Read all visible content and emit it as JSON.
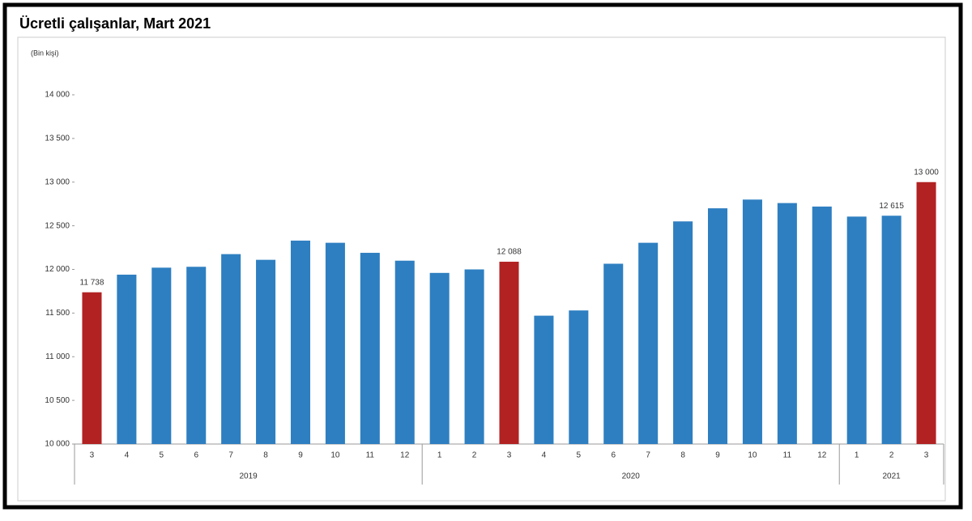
{
  "chart_data": {
    "type": "bar",
    "title": "Ücretli çalışanlar, Mart 2021",
    "unit_label": "(Bin kişi)",
    "categories": [
      "3",
      "4",
      "5",
      "6",
      "7",
      "8",
      "9",
      "10",
      "11",
      "12",
      "1",
      "2",
      "3",
      "4",
      "5",
      "6",
      "7",
      "8",
      "9",
      "10",
      "11",
      "12",
      "1",
      "2",
      "3"
    ],
    "years": [
      "2019",
      "2019",
      "2019",
      "2019",
      "2019",
      "2019",
      "2019",
      "2019",
      "2019",
      "2019",
      "2020",
      "2020",
      "2020",
      "2020",
      "2020",
      "2020",
      "2020",
      "2020",
      "2020",
      "2020",
      "2020",
      "2020",
      "2021",
      "2021",
      "2021"
    ],
    "values": [
      11738,
      11940,
      12020,
      12030,
      12175,
      12110,
      12330,
      12305,
      12190,
      12100,
      11960,
      12000,
      12088,
      11470,
      11530,
      12065,
      12305,
      12550,
      12700,
      12800,
      12760,
      12720,
      12605,
      12615,
      13000
    ],
    "value_labels": [
      "11 738",
      null,
      null,
      null,
      null,
      null,
      null,
      null,
      null,
      null,
      null,
      null,
      "12 088",
      null,
      null,
      null,
      null,
      null,
      null,
      null,
      null,
      null,
      null,
      "12 615",
      "13 000"
    ],
    "colors": [
      "#b22222",
      "#2e7fc1",
      "#2e7fc1",
      "#2e7fc1",
      "#2e7fc1",
      "#2e7fc1",
      "#2e7fc1",
      "#2e7fc1",
      "#2e7fc1",
      "#2e7fc1",
      "#2e7fc1",
      "#2e7fc1",
      "#b22222",
      "#2e7fc1",
      "#2e7fc1",
      "#2e7fc1",
      "#2e7fc1",
      "#2e7fc1",
      "#2e7fc1",
      "#2e7fc1",
      "#2e7fc1",
      "#2e7fc1",
      "#2e7fc1",
      "#2e7fc1",
      "#b22222"
    ],
    "ylim": [
      10000,
      14000
    ],
    "yticks": [
      {
        "value": 10000,
        "label": "10 000"
      },
      {
        "value": 10500,
        "label": "10 500"
      },
      {
        "value": 11000,
        "label": "11 000"
      },
      {
        "value": 11500,
        "label": "11 500"
      },
      {
        "value": 12000,
        "label": "12 000"
      },
      {
        "value": 12500,
        "label": "12 500"
      },
      {
        "value": 13000,
        "label": "13 000"
      },
      {
        "value": 13500,
        "label": "13 500"
      },
      {
        "value": 14000,
        "label": "14 000"
      }
    ],
    "grid": false
  }
}
